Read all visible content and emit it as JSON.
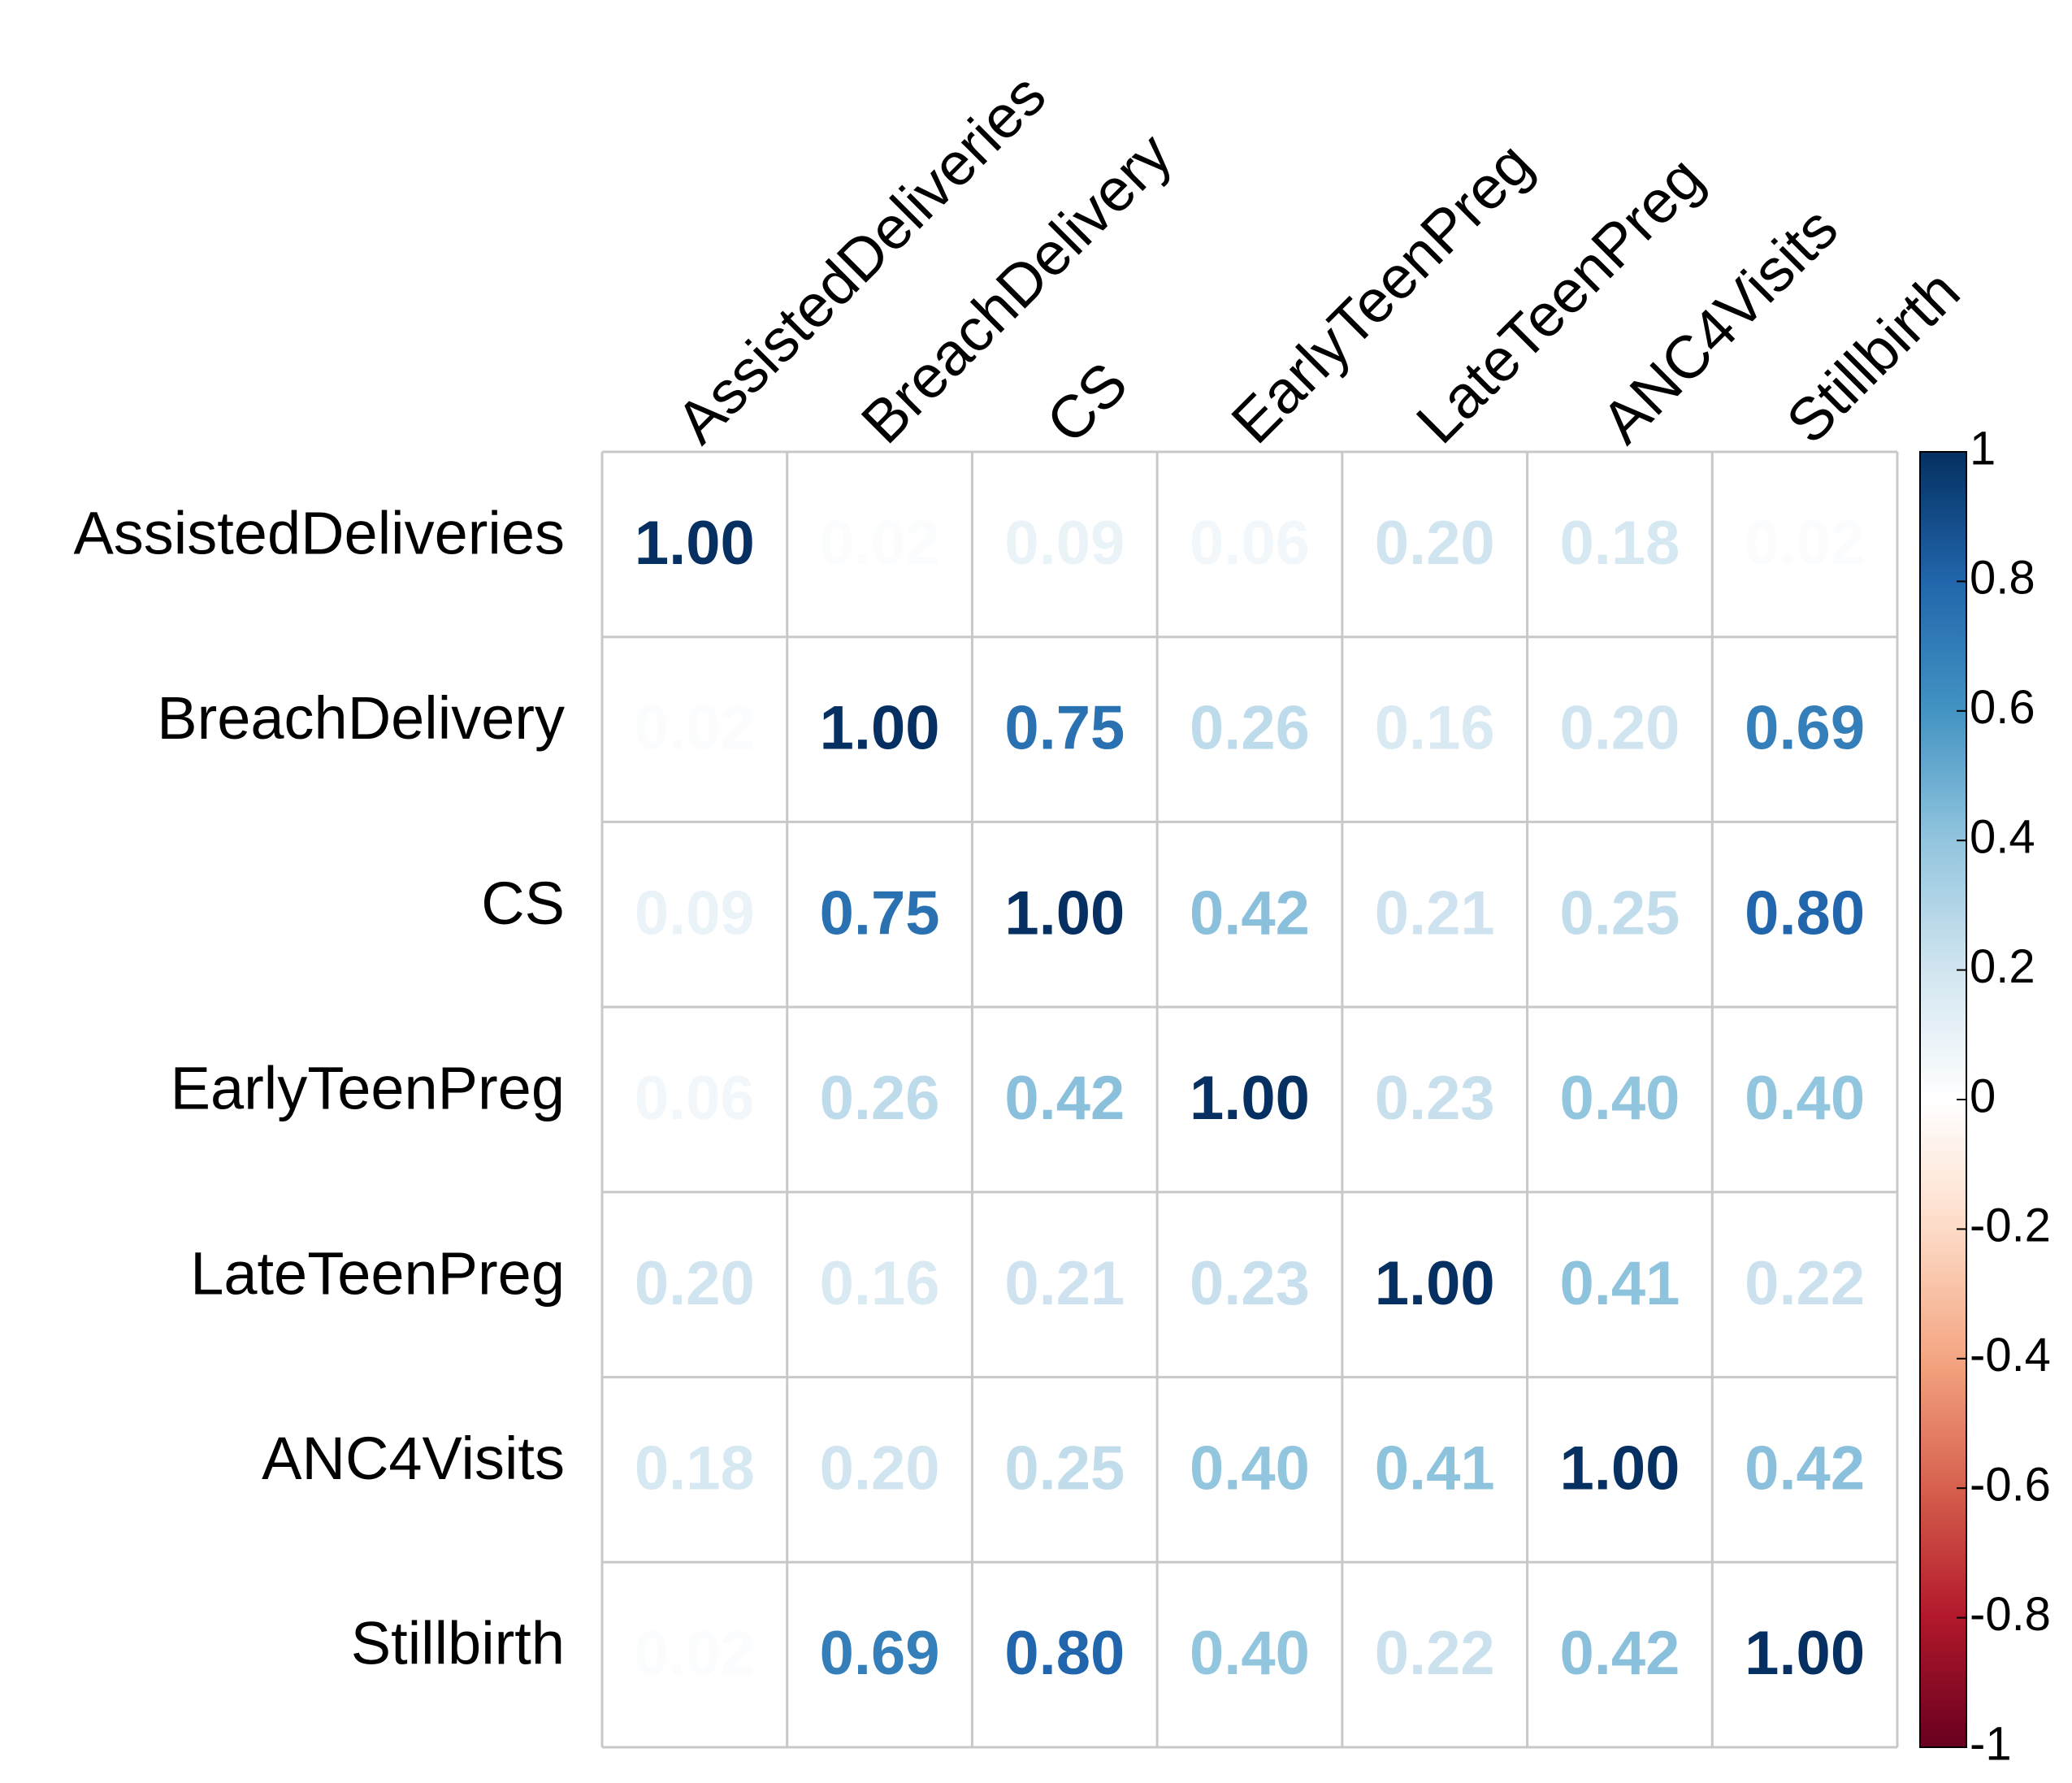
{
  "chart_data": {
    "type": "heatmap",
    "x": [
      "AssistedDeliveries",
      "BreachDelivery",
      "CS",
      "EarlyTeenPreg",
      "LateTeenPreg",
      "ANC4Visits",
      "Stillbirth"
    ],
    "y": [
      "AssistedDeliveries",
      "BreachDelivery",
      "CS",
      "EarlyTeenPreg",
      "LateTeenPreg",
      "ANC4Visits",
      "Stillbirth"
    ],
    "values": [
      [
        1,
        0.02,
        0.09,
        0.06,
        0.2,
        0.18,
        0.02
      ],
      [
        0.02,
        1,
        0.75,
        0.26,
        0.16,
        0.2,
        0.69
      ],
      [
        0.09,
        0.75,
        1,
        0.42,
        0.21,
        0.25,
        0.8
      ],
      [
        0.06,
        0.26,
        0.42,
        1,
        0.23,
        0.4,
        0.4
      ],
      [
        0.2,
        0.16,
        0.21,
        0.23,
        1,
        0.41,
        0.22
      ],
      [
        0.18,
        0.2,
        0.25,
        0.4,
        0.41,
        1,
        0.42
      ],
      [
        0.02,
        0.69,
        0.8,
        0.4,
        0.22,
        0.42,
        1
      ]
    ],
    "value_labels": [
      [
        "1.00",
        "0.02",
        "0.09",
        "0.06",
        "0.20",
        "0.18",
        "0.02"
      ],
      [
        "0.02",
        "1.00",
        "0.75",
        "0.26",
        "0.16",
        "0.20",
        "0.69"
      ],
      [
        "0.09",
        "0.75",
        "1.00",
        "0.42",
        "0.21",
        "0.25",
        "0.80"
      ],
      [
        "0.06",
        "0.26",
        "0.42",
        "1.00",
        "0.23",
        "0.40",
        "0.40"
      ],
      [
        "0.20",
        "0.16",
        "0.21",
        "0.23",
        "1.00",
        "0.41",
        "0.22"
      ],
      [
        "0.18",
        "0.20",
        "0.25",
        "0.40",
        "0.41",
        "1.00",
        "0.42"
      ],
      [
        "0.02",
        "0.69",
        "0.80",
        "0.40",
        "0.22",
        "0.42",
        "1.00"
      ]
    ],
    "zlim": [
      -1,
      1
    ],
    "zticks": [
      1,
      0.8,
      0.6,
      0.4,
      0.2,
      0,
      -0.2,
      -0.4,
      -0.6,
      -0.8,
      -1
    ],
    "colormap": [
      "#67001F",
      "#B2182B",
      "#D6604D",
      "#F4A582",
      "#FDDBC7",
      "#FFFFFF",
      "#D1E5F0",
      "#92C5DE",
      "#4393C3",
      "#2166AC",
      "#053061"
    ]
  }
}
